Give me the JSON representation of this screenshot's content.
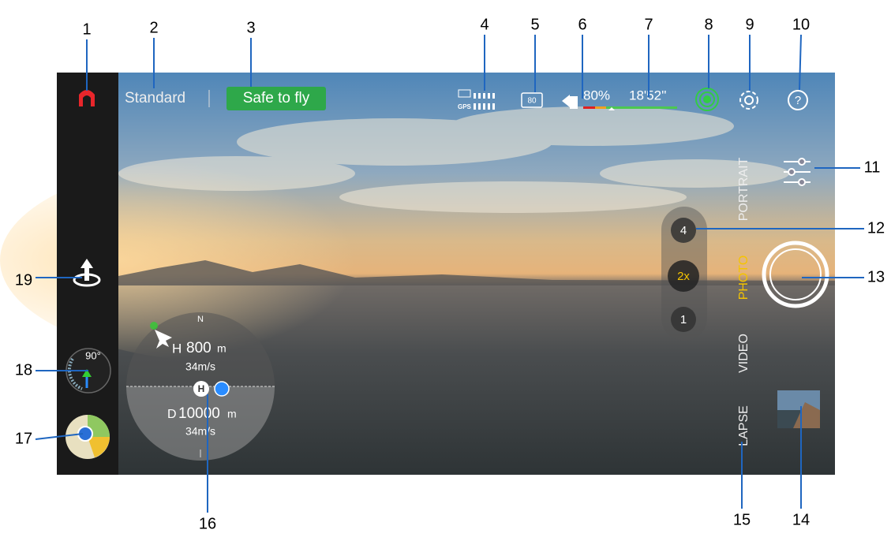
{
  "callouts": [
    "1",
    "2",
    "3",
    "4",
    "5",
    "6",
    "7",
    "8",
    "9",
    "10",
    "11",
    "12",
    "13",
    "14",
    "15",
    "16",
    "17",
    "18",
    "19"
  ],
  "top_bar": {
    "mode": "Standard",
    "status": "Safe to fly",
    "gps_label": "GPS",
    "rc_battery": "80",
    "battery_percent": "80%",
    "flight_time": "18'52''"
  },
  "camera_modes": [
    "PORTRAIT",
    "PHOTO",
    "VIDEO",
    "LAPSE"
  ],
  "zoom": [
    "4",
    "2x",
    "1"
  ],
  "telemetry": {
    "compass": "N",
    "height_label": "H",
    "height": "800",
    "height_unit": "m",
    "vertical_speed": "34m/s",
    "home": "H",
    "distance_label": "D",
    "distance": "10000",
    "distance_unit": "m",
    "horizontal_speed": "34m/s"
  },
  "gimbal": {
    "angle": "90°"
  }
}
